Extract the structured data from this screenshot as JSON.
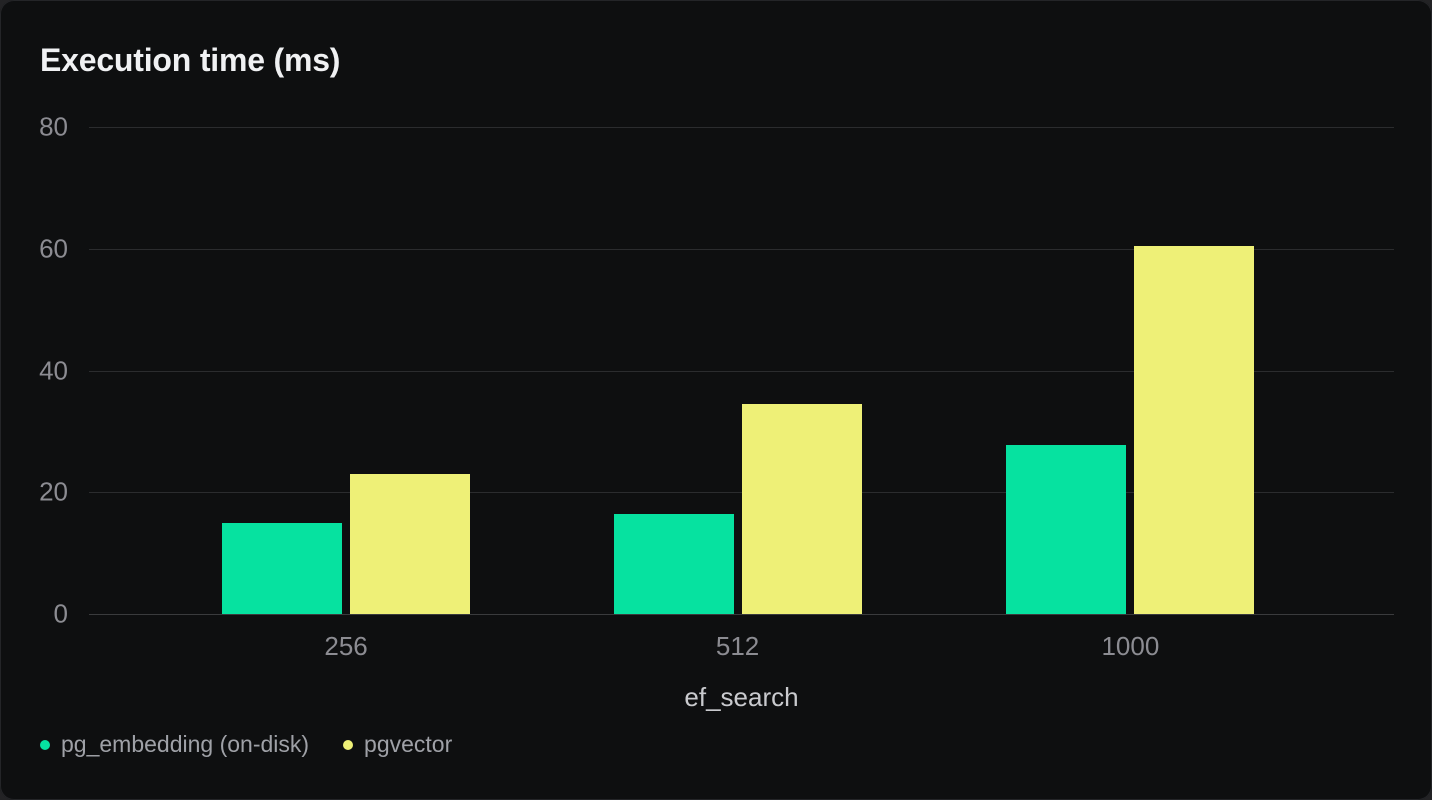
{
  "page": {
    "background_color": "#232325",
    "card_background_color": "#0e0f10"
  },
  "chart_data": {
    "type": "bar",
    "title": "Execution time (ms)",
    "xlabel": "ef_search",
    "ylabel": "",
    "categories": [
      "256",
      "512",
      "1000"
    ],
    "series": [
      {
        "name": "pg_embedding (on-disk)",
        "color": "#06e2a0",
        "values": [
          15,
          16.5,
          27.8
        ]
      },
      {
        "name": "pgvector",
        "color": "#eef077",
        "values": [
          23,
          34.5,
          60.5
        ]
      }
    ],
    "ylim": [
      0,
      80
    ],
    "yticks": [
      0,
      20,
      40,
      60,
      80
    ],
    "grid": true,
    "legend_position": "bottom-left",
    "text_colors": {
      "title": "#f0f1f3",
      "axis_ticks": "#8c8c92",
      "x_axis_label": "#c9cace",
      "legend": "#9fa1a7"
    }
  }
}
